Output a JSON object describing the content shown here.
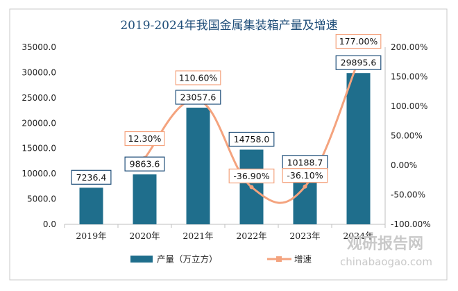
{
  "chart_data": {
    "type": "bar",
    "title": "2019-2024年我国金属集装箱产量及增速",
    "categories": [
      "2019年",
      "2020年",
      "2021年",
      "2022年",
      "2023年",
      "2024年"
    ],
    "series": [
      {
        "name": "产量（万立方）",
        "type": "bar",
        "axis": "left",
        "values": [
          7236.4,
          9863.6,
          23057.6,
          14758.0,
          10188.7,
          29895.6
        ],
        "labels": [
          "7236.4",
          "9863.6",
          "23057.6",
          "14758.0",
          "10188.7",
          "29895.6"
        ],
        "color": "#1f6e8c"
      },
      {
        "name": "增速",
        "type": "line",
        "axis": "right",
        "values": [
          null,
          12.3,
          110.6,
          -36.9,
          -36.1,
          177.0
        ],
        "labels": [
          "",
          "12.30%",
          "110.60%",
          "-36.90%",
          "-36.10%",
          "177.00%"
        ],
        "color": "#f4a37e"
      }
    ],
    "y_left": {
      "range": [
        0,
        35000
      ],
      "ticks": [
        "0.0",
        "5000.0",
        "10000.0",
        "15000.0",
        "20000.0",
        "25000.0",
        "30000.0",
        "35000.0"
      ]
    },
    "y_right": {
      "range": [
        -100,
        200
      ],
      "ticks": [
        "-100.00%",
        "-50.00%",
        "0.00%",
        "50.00%",
        "100.00%",
        "150.00%",
        "200.00%"
      ]
    },
    "grid": false,
    "legend_position": "bottom-left"
  },
  "watermark": {
    "text_cn": "观研报告网",
    "text_url": "chinabaogao.com"
  }
}
